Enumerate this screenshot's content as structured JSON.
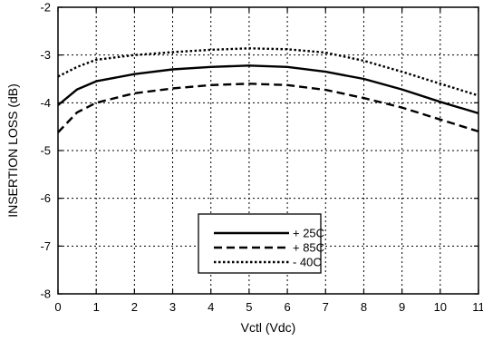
{
  "chart_data": {
    "type": "line",
    "title": "",
    "xlabel": "Vctl (Vdc)",
    "ylabel": "INSERTION LOSS (dB)",
    "xlim": [
      0,
      11
    ],
    "ylim": [
      -8,
      -2
    ],
    "xticks": [
      0,
      1,
      2,
      3,
      4,
      5,
      6,
      7,
      8,
      9,
      10,
      11
    ],
    "yticks": [
      -8,
      -7,
      -6,
      -5,
      -4,
      -3,
      -2
    ],
    "xtick_labels": [
      "0",
      "1",
      "2",
      "3",
      "4",
      "5",
      "6",
      "7",
      "8",
      "9",
      "10",
      "11"
    ],
    "ytick_labels": [
      "-8",
      "-7",
      "-6",
      "-5",
      "-4",
      "-3",
      "-2"
    ],
    "grid": "dotted",
    "legend_position": "bottom-center",
    "series": [
      {
        "name": "+ 25C",
        "style": "solid",
        "x": [
          0,
          0.5,
          1,
          2,
          3,
          4,
          5,
          6,
          7,
          8,
          9,
          10,
          11
        ],
        "y": [
          -4.05,
          -3.72,
          -3.55,
          -3.4,
          -3.3,
          -3.25,
          -3.22,
          -3.25,
          -3.35,
          -3.5,
          -3.72,
          -3.98,
          -4.22
        ]
      },
      {
        "name": "+ 85C",
        "style": "dashed",
        "x": [
          0,
          0.5,
          1,
          2,
          3,
          4,
          5,
          6,
          7,
          8,
          9,
          10,
          11
        ],
        "y": [
          -4.62,
          -4.2,
          -4.0,
          -3.8,
          -3.7,
          -3.63,
          -3.6,
          -3.63,
          -3.73,
          -3.9,
          -4.1,
          -4.35,
          -4.6
        ]
      },
      {
        "name": "- 40C",
        "style": "dotted",
        "x": [
          0,
          0.5,
          1,
          2,
          3,
          4,
          5,
          6,
          7,
          8,
          9,
          10,
          11
        ],
        "y": [
          -3.45,
          -3.25,
          -3.1,
          -3.0,
          -2.94,
          -2.89,
          -2.86,
          -2.88,
          -2.95,
          -3.12,
          -3.35,
          -3.6,
          -3.85
        ]
      }
    ]
  }
}
